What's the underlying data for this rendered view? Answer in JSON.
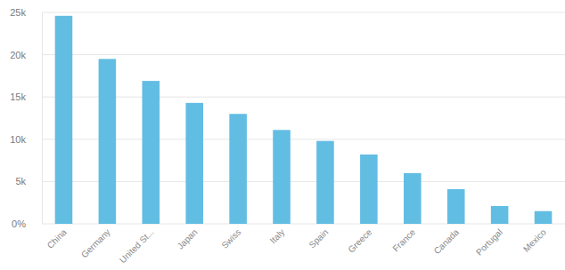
{
  "chart_data": {
    "type": "bar",
    "categories": [
      "China",
      "Germany",
      "United St...",
      "Japan",
      "Swiss",
      "Italy",
      "Spain",
      "Greece",
      "France",
      "Canada",
      "Portugal",
      "Mexico"
    ],
    "values": [
      24600,
      19500,
      16900,
      14300,
      13000,
      11100,
      9800,
      8200,
      6000,
      4100,
      2100,
      1500
    ],
    "color": "#62bde3",
    "ylim": [
      0,
      25000
    ],
    "yticks": [
      {
        "value": 0,
        "label": "0%"
      },
      {
        "value": 5000,
        "label": "5k"
      },
      {
        "value": 10000,
        "label": "10k"
      },
      {
        "value": 15000,
        "label": "15k"
      },
      {
        "value": 20000,
        "label": "20k"
      },
      {
        "value": 25000,
        "label": "25k"
      }
    ],
    "grid": true
  }
}
